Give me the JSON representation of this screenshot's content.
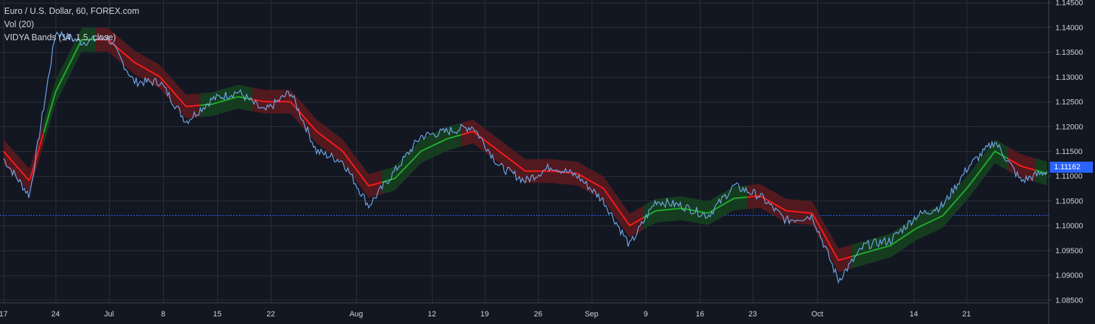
{
  "legend": {
    "title": "Euro / U.S. Dollar, 60, FOREX.com",
    "volume": "Vol (20)",
    "indicator": "VIDYA Bands (14, 1.5, close)"
  },
  "colors": {
    "background": "#131722",
    "grid": "#2a2e39",
    "price_line": "#6fa8e8",
    "band_red_fill": "#5a1a1f",
    "band_red_line": "#ff1a1a",
    "band_green_fill": "#16401f",
    "band_green_line": "#1fae2e",
    "marker_line": "#2962ff",
    "price_tag": "#2962ff",
    "axis_text": "#d1d4dc"
  },
  "chart_data": {
    "type": "line",
    "symbol": "EURUSD",
    "timeframe": "60",
    "ylim": [
      1.0845,
      1.1455
    ],
    "yticks": [
      "1.14500",
      "1.14000",
      "1.13500",
      "1.13000",
      "1.12500",
      "1.12000",
      "1.11500",
      "1.11000",
      "1.10500",
      "1.10000",
      "1.09500",
      "1.09000",
      "1.08500"
    ],
    "xticks": [
      "17",
      "24",
      "Jul",
      "8",
      "15",
      "22",
      "Aug",
      "12",
      "19",
      "26",
      "Sep",
      "9",
      "16",
      "23",
      "Oct",
      "14",
      "21"
    ],
    "last_price": "1.11162",
    "horizontal_line": 1.1021,
    "series": [
      {
        "x": [
          "17",
          "20",
          "24",
          "27",
          "Jul",
          "3",
          "6",
          "8",
          "11",
          "15",
          "18",
          "19",
          "22",
          "26",
          "Aug",
          "2",
          "5",
          "8",
          "12",
          "16",
          "19",
          "23",
          "26",
          "29",
          "Sep",
          "5",
          "9",
          "13",
          "16",
          "20",
          "23",
          "27",
          "Oct",
          "4",
          "8",
          "11",
          "14",
          "18",
          "21",
          "25",
          "29"
        ],
        "values": [
          1.1135,
          1.106,
          1.139,
          1.137,
          1.138,
          1.129,
          1.129,
          1.121,
          1.1255,
          1.127,
          1.123,
          1.127,
          1.115,
          1.113,
          1.104,
          1.111,
          1.118,
          1.119,
          1.12,
          1.112,
          1.109,
          1.112,
          1.11,
          1.105,
          1.096,
          1.105,
          1.104,
          1.102,
          1.108,
          1.106,
          1.101,
          1.102,
          1.089,
          1.096,
          1.097,
          1.102,
          1.104,
          1.112,
          1.117,
          1.109,
          1.111
        ]
      }
    ],
    "vidya": [
      1.115,
      1.109,
      1.127,
      1.1375,
      1.1375,
      1.133,
      1.13,
      1.124,
      1.1245,
      1.126,
      1.125,
      1.125,
      1.119,
      1.115,
      1.108,
      1.1095,
      1.115,
      1.1175,
      1.119,
      1.115,
      1.111,
      1.111,
      1.1105,
      1.1075,
      1.1,
      1.103,
      1.1035,
      1.1025,
      1.1055,
      1.106,
      1.103,
      1.1025,
      1.093,
      1.0945,
      1.096,
      1.0995,
      1.102,
      1.108,
      1.115,
      1.112,
      1.1105
    ],
    "trend": [
      "dn",
      "dn",
      "up",
      "up",
      "dn",
      "dn",
      "dn",
      "dn",
      "up",
      "up",
      "dn",
      "dn",
      "dn",
      "dn",
      "dn",
      "up",
      "up",
      "up",
      "dn",
      "dn",
      "dn",
      "dn",
      "dn",
      "dn",
      "dn",
      "up",
      "up",
      "up",
      "up",
      "dn",
      "dn",
      "dn",
      "dn",
      "up",
      "up",
      "up",
      "up",
      "up",
      "up",
      "dn",
      "up"
    ],
    "grid": true
  }
}
